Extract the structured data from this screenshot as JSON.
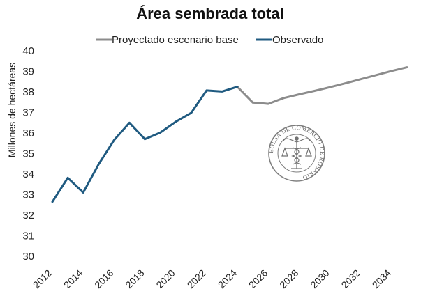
{
  "chart_data": {
    "type": "line",
    "title": "Área sembrada total",
    "ylabel": "Millones de hectáreas",
    "xlabel": "",
    "ylim": [
      30,
      40
    ],
    "xlim": [
      2012,
      2035
    ],
    "y_ticks": [
      "30",
      "31",
      "32",
      "33",
      "34",
      "35",
      "36",
      "37",
      "38",
      "39",
      "40"
    ],
    "x_ticks": [
      "2012",
      "2014",
      "2016",
      "2018",
      "2020",
      "2022",
      "2024",
      "2026",
      "2028",
      "2030",
      "2032",
      "2034"
    ],
    "grid": false,
    "legend_position": "top",
    "series": [
      {
        "name": "Proyectado escenario base",
        "color": "#8c8c8c",
        "x": [
          2024,
          2025,
          2026,
          2027,
          2028,
          2029,
          2030,
          2031,
          2032,
          2033,
          2034,
          2035
        ],
        "values": [
          38.25,
          37.48,
          37.42,
          37.7,
          37.88,
          38.05,
          38.23,
          38.42,
          38.62,
          38.82,
          39.02,
          39.2
        ]
      },
      {
        "name": "Observado",
        "color": "#1f5a80",
        "x": [
          2012,
          2013,
          2014,
          2015,
          2016,
          2017,
          2018,
          2019,
          2020,
          2021,
          2022,
          2023,
          2024
        ],
        "values": [
          32.65,
          33.82,
          33.1,
          34.48,
          35.65,
          36.5,
          35.7,
          36.02,
          36.55,
          36.98,
          38.07,
          38.02,
          38.25
        ]
      }
    ]
  },
  "watermark": {
    "text": "BOLSA DE COMERCIO DE ROSARIO"
  }
}
